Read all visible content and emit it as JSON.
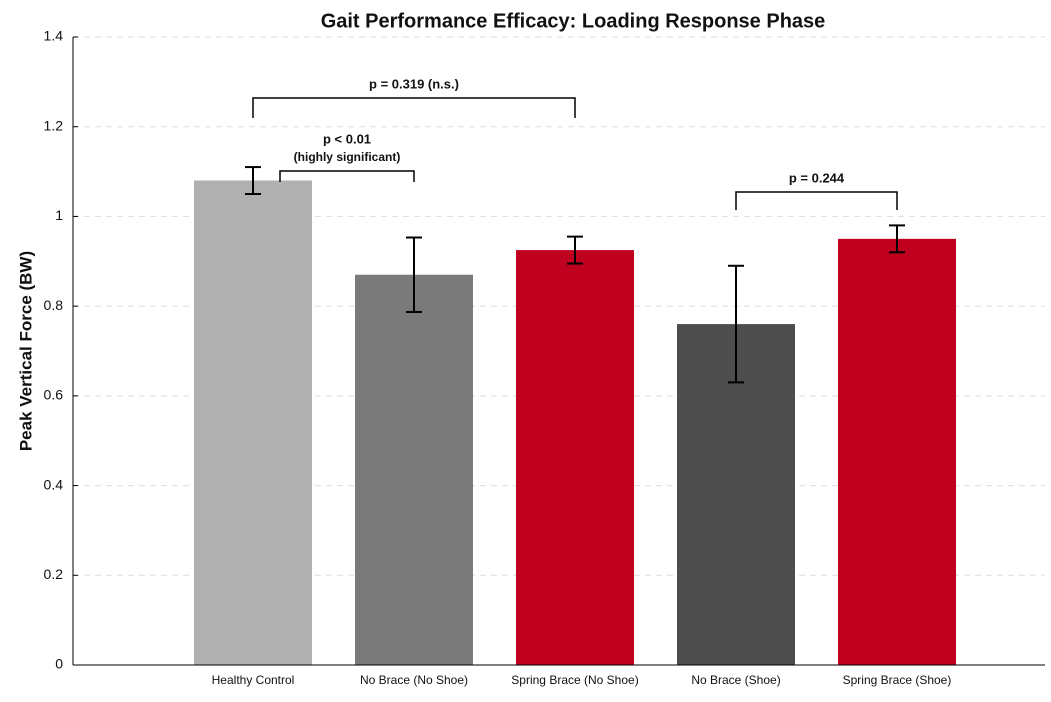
{
  "chart_data": {
    "type": "bar",
    "title": "Gait Performance Efficacy: Loading Response Phase",
    "y_label": "Peak Vertical Force (BW)",
    "categories": [
      "Healthy Control",
      "No Brace (No Shoe)",
      "Spring Brace (No Shoe)",
      "No Brace (Shoe)",
      "Spring Brace (Shoe)"
    ],
    "values": [
      1.08,
      0.87,
      0.925,
      0.76,
      0.95
    ],
    "errors": [
      0.03,
      0.083,
      0.03,
      0.13,
      0.03
    ],
    "colors": [
      "#b0b0b0",
      "#7a7a7a",
      "#c0001f",
      "#4d4d4d",
      "#c0001f"
    ],
    "ylim": [
      0,
      1.4
    ],
    "yticks": [
      0,
      0.2,
      0.4,
      0.6,
      0.8,
      1,
      1.2,
      1.4
    ],
    "grid": true,
    "annotations": [
      {
        "lines": [
          "p = 0.319 (n.s.)"
        ],
        "from": 0,
        "to": 2
      },
      {
        "lines": [
          "p < 0.01",
          "(highly significant)"
        ],
        "from": 0,
        "to": 1
      },
      {
        "lines": [
          "p = 0.244"
        ],
        "from": 3,
        "to": 4
      }
    ]
  }
}
